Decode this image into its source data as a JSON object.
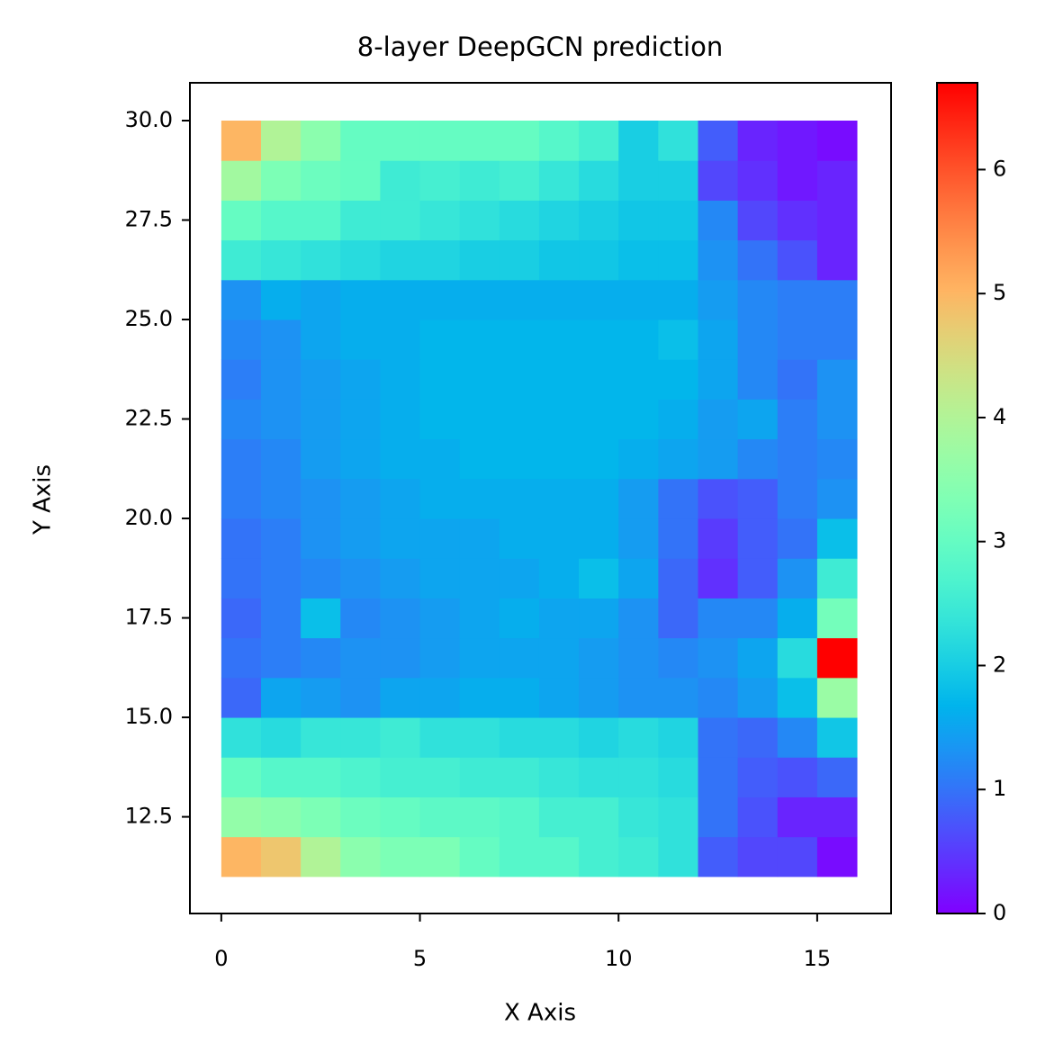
{
  "chart_data": {
    "type": "heatmap",
    "title": "8-layer DeepGCN prediction",
    "x_label": "X Axis",
    "y_label": "Y Axis",
    "x": [
      0,
      1,
      2,
      3,
      4,
      5,
      6,
      7,
      8,
      9,
      10,
      11,
      12,
      13,
      14,
      15,
      16
    ],
    "y": [
      11,
      12,
      13,
      14,
      15,
      16,
      17,
      18,
      19,
      20,
      21,
      22,
      23,
      24,
      25,
      26,
      27,
      28,
      29,
      30
    ],
    "values": [
      [
        5,
        4.8,
        4,
        3.5,
        3.3,
        3.3,
        3,
        2.8,
        2.8,
        2.6,
        2.5,
        2.3,
        0.8,
        0.6,
        0.6,
        0.1
      ],
      [
        3.6,
        3.5,
        3.3,
        3.1,
        3,
        2.9,
        2.9,
        2.8,
        2.6,
        2.6,
        2.4,
        2.3,
        1,
        0.7,
        0.3,
        0.3
      ],
      [
        3,
        2.8,
        2.8,
        2.7,
        2.6,
        2.6,
        2.5,
        2.5,
        2.4,
        2.3,
        2.3,
        2.2,
        1,
        0.8,
        0.7,
        0.9
      ],
      [
        2.3,
        2.2,
        2.4,
        2.4,
        2.5,
        2.3,
        2.3,
        2.2,
        2.2,
        2.1,
        2.2,
        2.1,
        1,
        0.9,
        1.2,
        1.9
      ],
      [
        0.9,
        1.5,
        1.4,
        1.3,
        1.5,
        1.5,
        1.6,
        1.6,
        1.5,
        1.4,
        1.3,
        1.3,
        1.2,
        1.4,
        1.8,
        3.7
      ],
      [
        1,
        1.1,
        1.2,
        1.3,
        1.3,
        1.4,
        1.5,
        1.5,
        1.5,
        1.4,
        1.3,
        1.2,
        1.3,
        1.5,
        2.2,
        6.7
      ],
      [
        0.9,
        1.1,
        1.8,
        1.2,
        1.3,
        1.4,
        1.5,
        1.6,
        1.5,
        1.5,
        1.3,
        0.9,
        1.2,
        1.2,
        1.6,
        3.2
      ],
      [
        1,
        1.1,
        1.2,
        1.3,
        1.4,
        1.5,
        1.5,
        1.5,
        1.6,
        1.8,
        1.5,
        0.9,
        0.4,
        0.8,
        1.3,
        2.5
      ],
      [
        1,
        1.1,
        1.3,
        1.4,
        1.5,
        1.5,
        1.5,
        1.6,
        1.6,
        1.6,
        1.4,
        1,
        0.5,
        0.8,
        1,
        1.8
      ],
      [
        1.1,
        1.2,
        1.3,
        1.4,
        1.5,
        1.6,
        1.6,
        1.6,
        1.6,
        1.6,
        1.4,
        1,
        0.7,
        0.8,
        1.1,
        1.3
      ],
      [
        1.1,
        1.2,
        1.4,
        1.5,
        1.6,
        1.6,
        1.7,
        1.7,
        1.7,
        1.7,
        1.6,
        1.5,
        1.4,
        1.2,
        1.1,
        1.2
      ],
      [
        1.2,
        1.3,
        1.4,
        1.5,
        1.6,
        1.7,
        1.7,
        1.7,
        1.7,
        1.7,
        1.7,
        1.6,
        1.4,
        1.5,
        1.1,
        1.3
      ],
      [
        1.1,
        1.3,
        1.4,
        1.5,
        1.6,
        1.7,
        1.7,
        1.7,
        1.7,
        1.7,
        1.7,
        1.7,
        1.5,
        1.2,
        1,
        1.3
      ],
      [
        1.2,
        1.3,
        1.5,
        1.6,
        1.6,
        1.7,
        1.7,
        1.7,
        1.7,
        1.7,
        1.7,
        1.8,
        1.5,
        1.2,
        1.1,
        1.1
      ],
      [
        1.3,
        1.6,
        1.5,
        1.6,
        1.6,
        1.6,
        1.6,
        1.6,
        1.6,
        1.6,
        1.6,
        1.6,
        1.4,
        1.2,
        1.1,
        1.1
      ],
      [
        2.5,
        2.4,
        2.3,
        2.2,
        2.1,
        2.1,
        2,
        2,
        1.9,
        1.9,
        1.8,
        1.8,
        1.3,
        1,
        0.7,
        0.3
      ],
      [
        3,
        2.8,
        2.8,
        2.5,
        2.5,
        2.4,
        2.3,
        2.2,
        2.1,
        2,
        1.9,
        1.9,
        1.2,
        0.6,
        0.4,
        0.3
      ],
      [
        3.8,
        3.3,
        3.1,
        3,
        2.5,
        2.6,
        2.5,
        2.6,
        2.4,
        2.2,
        2,
        2,
        0.6,
        0.4,
        0.2,
        0.3
      ],
      [
        5,
        4,
        3.5,
        3,
        3,
        3,
        3,
        3,
        2.8,
        2.6,
        2,
        2.3,
        0.8,
        0.3,
        0.2,
        0.1
      ]
    ],
    "colormap": "rainbow",
    "clim": [
      0,
      6.7
    ],
    "cticks": [
      0,
      1,
      2,
      3,
      4,
      5,
      6
    ],
    "xlim": [
      -0.79,
      16.86
    ],
    "ylim": [
      10.07,
      30.95
    ],
    "xticks": [
      0,
      5,
      10,
      15
    ],
    "yticks": [
      {
        "value": 12.5,
        "label": "12.5"
      },
      {
        "value": 15,
        "label": "15.0"
      },
      {
        "value": 17.5,
        "label": "17.5"
      },
      {
        "value": 20,
        "label": "20.0"
      },
      {
        "value": 22.5,
        "label": "22.5"
      },
      {
        "value": 25,
        "label": "25.0"
      },
      {
        "value": 27.5,
        "label": "27.5"
      },
      {
        "value": 30,
        "label": "30.0"
      }
    ]
  }
}
